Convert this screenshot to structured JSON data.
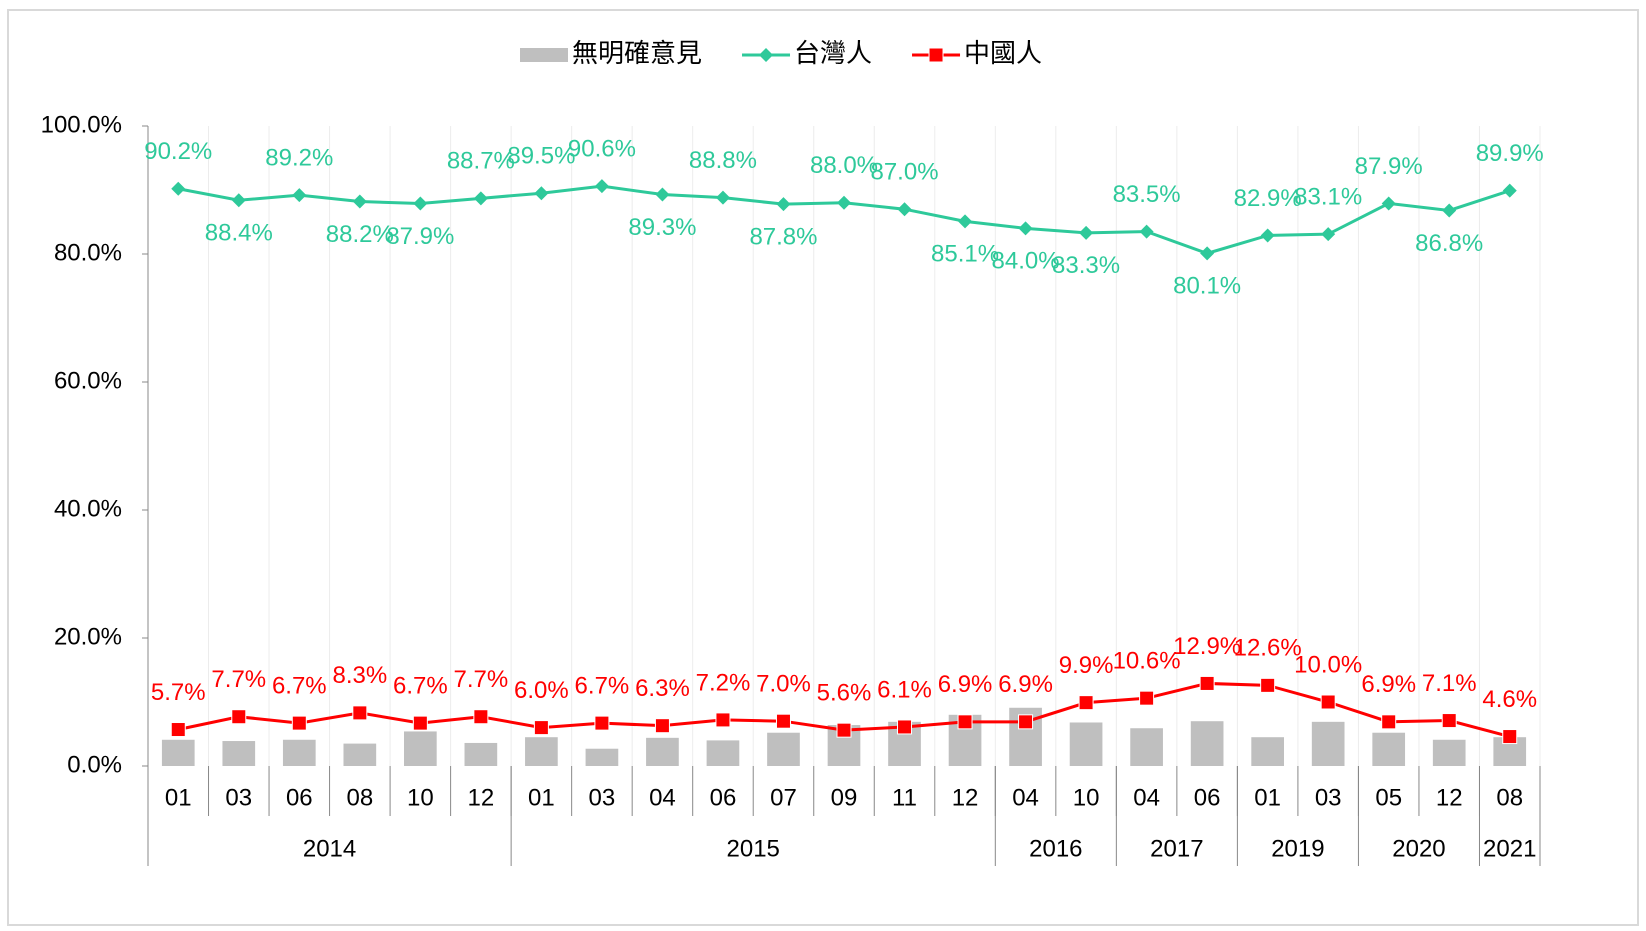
{
  "chart_data": {
    "type": "combo",
    "categories": [
      "01",
      "03",
      "06",
      "08",
      "10",
      "12",
      "01",
      "03",
      "04",
      "06",
      "07",
      "09",
      "11",
      "12",
      "04",
      "10",
      "04",
      "06",
      "01",
      "03",
      "05",
      "12",
      "08"
    ],
    "category_groups": [
      {
        "label": "2014",
        "size": 6
      },
      {
        "label": "2015",
        "size": 8
      },
      {
        "label": "2016",
        "size": 2
      },
      {
        "label": "2017",
        "size": 2
      },
      {
        "label": "2019",
        "size": 2
      },
      {
        "label": "2020",
        "size": 2
      },
      {
        "label": "2021",
        "size": 1
      }
    ],
    "series": [
      {
        "name": "無明確意見",
        "type": "bar",
        "color": "#bfbfbf",
        "values": [
          4.1,
          3.9,
          4.1,
          3.5,
          5.4,
          3.6,
          4.5,
          2.7,
          4.4,
          4.0,
          5.2,
          6.4,
          6.9,
          8.0,
          9.1,
          6.8,
          5.9,
          7.0,
          4.5,
          6.9,
          5.2,
          4.1,
          4.5
        ]
      },
      {
        "name": "台灣人",
        "type": "line",
        "marker": "diamond",
        "color": "#2ec99a",
        "values": [
          90.2,
          88.4,
          89.2,
          88.2,
          87.9,
          88.7,
          89.5,
          90.6,
          89.3,
          88.8,
          87.8,
          88.0,
          87.0,
          85.1,
          84.0,
          83.3,
          83.5,
          80.1,
          82.9,
          83.1,
          87.9,
          86.8,
          89.9
        ],
        "value_labels": [
          "90.2%",
          "88.4%",
          "89.2%",
          "88.2%",
          "87.9%",
          "88.7%",
          "89.5%",
          "90.6%",
          "89.3%",
          "88.8%",
          "87.8%",
          "88.0%",
          "87.0%",
          "85.1%",
          "84.0%",
          "83.3%",
          "83.5%",
          "80.1%",
          "82.9%",
          "83.1%",
          "87.9%",
          "86.8%",
          "89.9%"
        ]
      },
      {
        "name": "中國人",
        "type": "line",
        "marker": "square",
        "color": "#ff0000",
        "values": [
          5.7,
          7.7,
          6.7,
          8.3,
          6.7,
          7.7,
          6.0,
          6.7,
          6.3,
          7.2,
          7.0,
          5.6,
          6.1,
          6.9,
          6.9,
          9.9,
          10.6,
          12.9,
          12.6,
          10.0,
          6.9,
          7.1,
          4.6
        ],
        "value_labels": [
          "5.7%",
          "7.7%",
          "6.7%",
          "8.3%",
          "6.7%",
          "7.7%",
          "6.0%",
          "6.7%",
          "6.3%",
          "7.2%",
          "7.0%",
          "5.6%",
          "6.1%",
          "6.9%",
          "6.9%",
          "9.9%",
          "10.6%",
          "12.9%",
          "12.6%",
          "10.0%",
          "6.9%",
          "7.1%",
          "4.6%"
        ]
      }
    ],
    "ylim": [
      0,
      100
    ],
    "yticks": [
      {
        "value": 0,
        "label": "0.0%"
      },
      {
        "value": 20,
        "label": "20.0%"
      },
      {
        "value": 40,
        "label": "40.0%"
      },
      {
        "value": 60,
        "label": "60.0%"
      },
      {
        "value": 80,
        "label": "80.0%"
      },
      {
        "value": 100,
        "label": "100.0%"
      }
    ],
    "legend": "top",
    "grid": "vertical"
  }
}
